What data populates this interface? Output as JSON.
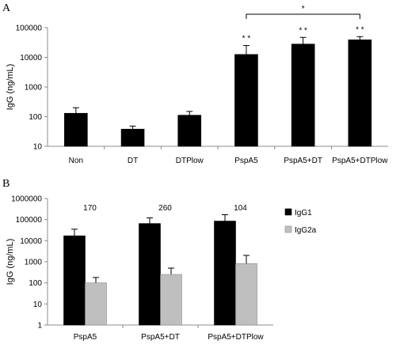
{
  "panel_a": {
    "letter": "A"
  },
  "panel_b": {
    "letter": "B"
  },
  "chart_data": [
    {
      "type": "bar",
      "title": "",
      "xlabel": "",
      "ylabel": "IgG (ng/mL)",
      "yscale": "log",
      "ylim": [
        10,
        100000
      ],
      "ytick_labels": [
        "10",
        "100",
        "1000",
        "10000",
        "100000"
      ],
      "categories": [
        "Non",
        "DT",
        "DTPlow",
        "PspA5",
        "PspA5+DT",
        "PspA5+DTPlow"
      ],
      "series": [
        {
          "color": "#000000",
          "values": [
            130,
            38,
            112,
            12500,
            28000,
            39000
          ],
          "error_upper": [
            200,
            48,
            150,
            25000,
            47000,
            50000
          ]
        }
      ],
      "significance_marks": [
        "",
        "",
        "",
        "* *",
        "* *",
        "* *"
      ],
      "bracket": {
        "from": "PspA5",
        "to": "PspA5+DTPlow",
        "label": "*"
      },
      "grid": false,
      "legend": "none"
    },
    {
      "type": "bar",
      "title": "",
      "xlabel": "",
      "ylabel": "IgG (ng/mL)",
      "yscale": "log",
      "ylim": [
        1,
        1000000
      ],
      "ytick_labels": [
        "1",
        "10",
        "100",
        "1000",
        "10000",
        "100000",
        "1000000"
      ],
      "categories": [
        "PspA5",
        "PspA5+DT",
        "PspA5+DTPlow"
      ],
      "series": [
        {
          "name": "IgG1",
          "color": "#000000",
          "values": [
            17000,
            65000,
            85000
          ],
          "error_upper": [
            35000,
            120000,
            170000
          ]
        },
        {
          "name": "IgG2a",
          "color": "#bfbfbf",
          "values": [
            100,
            250,
            820
          ],
          "error_upper": [
            180,
            500,
            2000
          ]
        }
      ],
      "ratio_labels": [
        "170",
        "260",
        "104"
      ],
      "grid": false,
      "legend": "right"
    }
  ]
}
